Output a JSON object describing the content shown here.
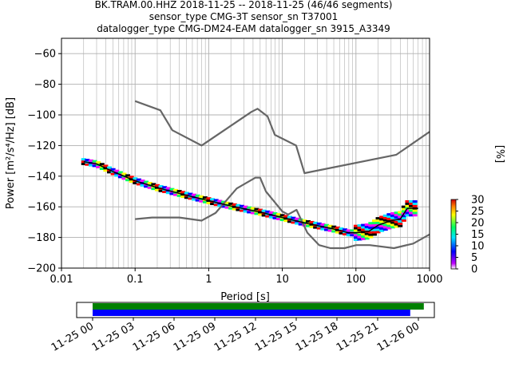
{
  "title_lines": [
    "BK.TRAM.00.HHZ   2018-11-25 -- 2018-11-25  (46/46 segments)",
    "sensor_type CMG-3T sensor_sn T37001",
    "datalogger_type CMG-DM24-EAM datalogger_sn 3915_A3349"
  ],
  "chart_data": [
    {
      "type": "line",
      "xlabel": "Period [s]",
      "ylabel": "Power [m²/s⁴/Hz] [dB]",
      "xscale": "log",
      "xlim": [
        0.01,
        1000
      ],
      "ylim": [
        -200,
        -50
      ],
      "xticks": [
        {
          "v": 0.01,
          "label": "0.01"
        },
        {
          "v": 0.1,
          "label": "0.1"
        },
        {
          "v": 1,
          "label": "1"
        },
        {
          "v": 10,
          "label": "10"
        },
        {
          "v": 100,
          "label": "100"
        },
        {
          "v": 1000,
          "label": "1000"
        }
      ],
      "yticks": [
        -60,
        -80,
        -100,
        -120,
        -140,
        -160,
        -180,
        -200
      ],
      "grid": true,
      "series": [
        {
          "role": "noise-model-high",
          "color": "#666666",
          "points": [
            [
              0.1,
              -91
            ],
            [
              0.22,
              -97
            ],
            [
              0.32,
              -110
            ],
            [
              0.8,
              -120
            ],
            [
              3.8,
              -98
            ],
            [
              4.6,
              -96
            ],
            [
              6.3,
              -101
            ],
            [
              7.9,
              -113
            ],
            [
              15.4,
              -120
            ],
            [
              20,
              -138
            ],
            [
              354,
              -126
            ],
            [
              1000,
              -111
            ]
          ]
        },
        {
          "role": "noise-model-low",
          "color": "#666666",
          "points": [
            [
              0.1,
              -168
            ],
            [
              0.17,
              -167
            ],
            [
              0.4,
              -167
            ],
            [
              0.8,
              -169
            ],
            [
              1.24,
              -164
            ],
            [
              2.4,
              -148
            ],
            [
              4.3,
              -141
            ],
            [
              5,
              -141
            ],
            [
              6,
              -150
            ],
            [
              10,
              -163
            ],
            [
              12,
              -165
            ],
            [
              15.6,
              -162
            ],
            [
              21.9,
              -177
            ],
            [
              31.6,
              -185
            ],
            [
              45,
              -187
            ],
            [
              70,
              -187
            ],
            [
              101,
              -185
            ],
            [
              154,
              -185
            ],
            [
              328,
              -187
            ],
            [
              600,
              -184
            ],
            [
              1000,
              -178
            ]
          ]
        },
        {
          "role": "mode",
          "color": "#000000",
          "points": [
            [
              0.02,
              -130.5
            ],
            [
              0.03,
              -132
            ],
            [
              0.05,
              -137
            ],
            [
              0.1,
              -143
            ],
            [
              0.2,
              -147.5
            ],
            [
              0.5,
              -152.5
            ],
            [
              1,
              -156
            ],
            [
              2,
              -159.5
            ],
            [
              5,
              -163.5
            ],
            [
              10,
              -167
            ],
            [
              20,
              -170.5
            ],
            [
              50,
              -174.5
            ],
            [
              80,
              -177
            ],
            [
              100,
              -177
            ],
            [
              150,
              -176
            ],
            [
              200,
              -172
            ],
            [
              300,
              -169
            ],
            [
              400,
              -168
            ],
            [
              500,
              -161
            ],
            [
              700,
              -161
            ]
          ]
        }
      ],
      "psd_colorbar": {
        "label": "[%]",
        "range": [
          0,
          30
        ],
        "ticks": [
          0,
          5,
          10,
          15,
          20,
          25,
          30
        ]
      }
    },
    {
      "type": "timeline",
      "range": [
        "2018-11-25 00:00",
        "2018-11-26 01:00"
      ],
      "tick_labels": [
        "11-25 00",
        "11-25 03",
        "11-25 06",
        "11-25 09",
        "11-25 12",
        "11-25 15",
        "11-25 18",
        "11-25 21",
        "11-26 00"
      ],
      "bars": [
        {
          "color": "#008000",
          "start_hour": 0.0,
          "end_hour": 24.4
        },
        {
          "color": "#0000ff",
          "start_hour": 0.0,
          "end_hour": 23.4
        }
      ]
    }
  ]
}
